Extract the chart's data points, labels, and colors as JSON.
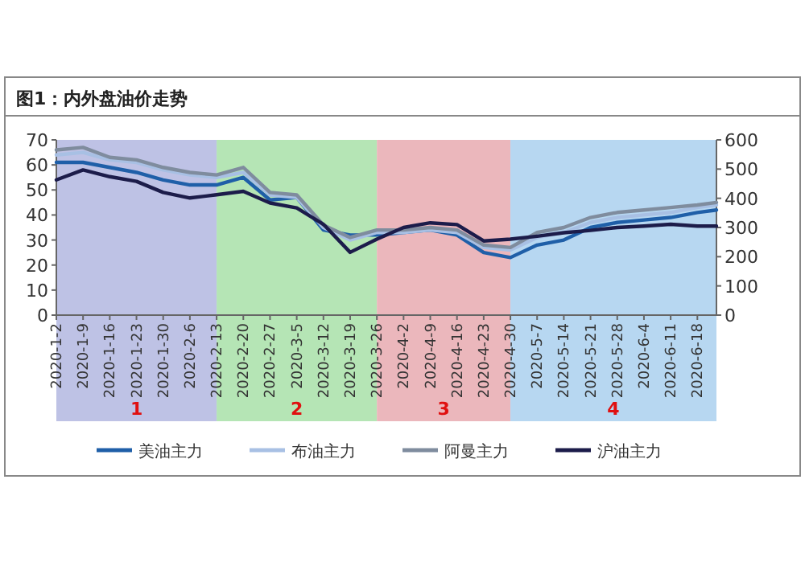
{
  "chart_data": {
    "type": "line",
    "title": "图1：内外盘油价走势",
    "x": [
      "2020-01-02",
      "2020-01-09",
      "2020-01-16",
      "2020-01-23",
      "2020-01-30",
      "2020-02-06",
      "2020-02-13",
      "2020-02-20",
      "2020-02-27",
      "2020-03-05",
      "2020-03-12",
      "2020-03-19",
      "2020-03-26",
      "2020-04-02",
      "2020-04-09",
      "2020-04-16",
      "2020-04-23",
      "2020-04-30",
      "2020-05-07",
      "2020-05-14",
      "2020-05-21",
      "2020-05-28",
      "2020-06-04",
      "2020-06-11",
      "2020-06-18",
      "2020-06-23"
    ],
    "series": [
      {
        "name": "美油主力",
        "color": "#1f5fa8",
        "values": [
          61,
          61,
          59,
          57,
          54,
          52,
          52,
          55,
          46,
          47,
          34,
          32,
          32,
          33,
          34,
          32,
          25,
          23,
          28,
          30,
          35,
          37,
          38,
          39,
          41,
          42
        ]
      },
      {
        "name": "布油主力",
        "color": "#a8c0e4",
        "values": [
          64,
          65,
          62,
          61,
          58,
          56,
          55,
          57,
          48,
          47,
          35,
          30,
          33,
          33,
          34,
          33,
          27,
          26,
          31,
          33,
          37,
          39,
          40,
          41,
          43,
          44
        ]
      },
      {
        "name": "阿曼主力",
        "color": "#7f8c9e",
        "values": [
          66,
          67,
          63,
          62,
          59,
          57,
          56,
          59,
          49,
          48,
          36,
          31,
          34,
          34,
          35,
          34,
          28,
          27,
          33,
          35,
          39,
          41,
          42,
          43,
          44,
          45
        ]
      },
      {
        "name": "沪油主力",
        "color": "#1c1c4a",
        "axis": "y2",
        "values": [
          463,
          497,
          474,
          458,
          420,
          401,
          412,
          424,
          384,
          367,
          311,
          215,
          260,
          300,
          316,
          310,
          254,
          260,
          270,
          282,
          290,
          300,
          305,
          311,
          305,
          305
        ]
      }
    ],
    "xlim": [
      "2020-01-02",
      "2020-06-23"
    ],
    "xticks": [
      {
        "value": "2020-01-02",
        "label": "2020-1-2"
      },
      {
        "value": "2020-01-09",
        "label": "2020-1-9"
      },
      {
        "value": "2020-01-16",
        "label": "2020-1-16"
      },
      {
        "value": "2020-01-23",
        "label": "2020-1-23"
      },
      {
        "value": "2020-01-30",
        "label": "2020-1-30"
      },
      {
        "value": "2020-02-06",
        "label": "2020-2-6"
      },
      {
        "value": "2020-02-13",
        "label": "2020-2-13"
      },
      {
        "value": "2020-02-20",
        "label": "2020-2-20"
      },
      {
        "value": "2020-02-27",
        "label": "2020-2-27"
      },
      {
        "value": "2020-03-05",
        "label": "2020-3-5"
      },
      {
        "value": "2020-03-12",
        "label": "2020-3-12"
      },
      {
        "value": "2020-03-19",
        "label": "2020-3-19"
      },
      {
        "value": "2020-03-26",
        "label": "2020-3-26"
      },
      {
        "value": "2020-04-02",
        "label": "2020-4-2"
      },
      {
        "value": "2020-04-09",
        "label": "2020-4-9"
      },
      {
        "value": "2020-04-16",
        "label": "2020-4-16"
      },
      {
        "value": "2020-04-23",
        "label": "2020-4-23"
      },
      {
        "value": "2020-04-30",
        "label": "2020-4-30"
      },
      {
        "value": "2020-05-07",
        "label": "2020-5-7"
      },
      {
        "value": "2020-05-14",
        "label": "2020-5-14"
      },
      {
        "value": "2020-05-21",
        "label": "2020-5-21"
      },
      {
        "value": "2020-05-28",
        "label": "2020-5-28"
      },
      {
        "value": "2020-06-04",
        "label": "2020-6-4"
      },
      {
        "value": "2020-06-11",
        "label": "2020-6-11"
      },
      {
        "value": "2020-06-18",
        "label": "2020-6-18"
      }
    ],
    "ylim": [
      0,
      70
    ],
    "yticks": [
      0,
      10,
      20,
      30,
      40,
      50,
      60,
      70
    ],
    "y2lim": [
      0,
      600
    ],
    "y2ticks": [
      0,
      100,
      200,
      300,
      400,
      500,
      600
    ],
    "bands": [
      {
        "axis": "x",
        "from": "2020-01-02",
        "to": "2020-02-13",
        "label": "1",
        "color": "#b3b7e0"
      },
      {
        "axis": "x",
        "from": "2020-02-13",
        "to": "2020-03-26",
        "label": "2",
        "color": "#a8e0a8"
      },
      {
        "axis": "x",
        "from": "2020-03-26",
        "to": "2020-04-30",
        "label": "3",
        "color": "#e8aab0"
      },
      {
        "axis": "x",
        "from": "2020-04-30",
        "to": "2020-06-23",
        "label": "4",
        "color": "#aad0ee"
      }
    ],
    "grid": false,
    "legend": "bottom",
    "line_style": "solid",
    "marker": "none"
  }
}
